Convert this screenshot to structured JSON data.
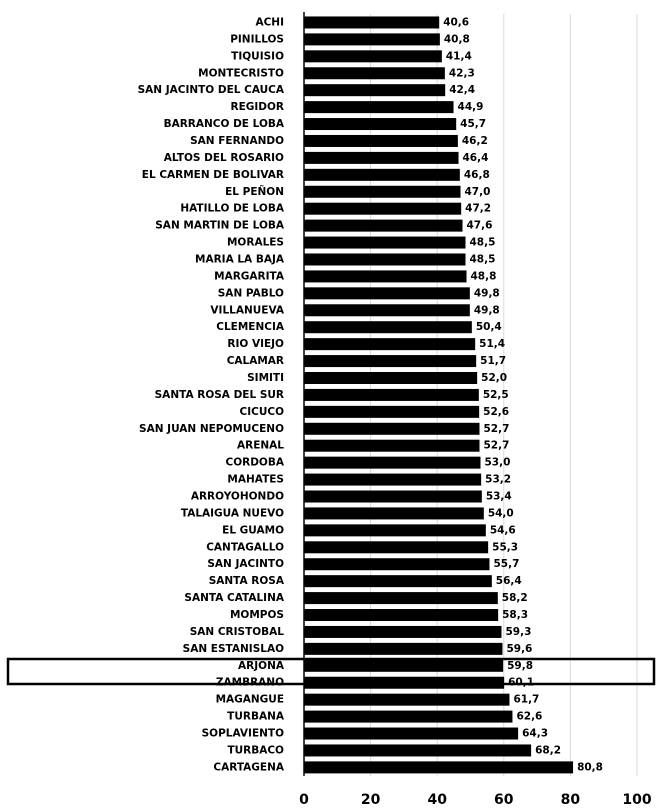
{
  "chart_data": {
    "type": "bar",
    "orientation": "horizontal",
    "categories": [
      "ACHI",
      "PINILLOS",
      "TIQUISIO",
      "MONTECRISTO",
      "SAN JACINTO DEL CAUCA",
      "REGIDOR",
      "BARRANCO DE LOBA",
      "SAN FERNANDO",
      "ALTOS DEL ROSARIO",
      "EL CARMEN DE BOLIVAR",
      "EL PEÑON",
      "HATILLO DE LOBA",
      "SAN MARTIN DE LOBA",
      "MORALES",
      "MARIA LA BAJA",
      "MARGARITA",
      "SAN PABLO",
      "VILLANUEVA",
      "CLEMENCIA",
      "RIO VIEJO",
      "CALAMAR",
      "SIMITI",
      "SANTA ROSA DEL SUR",
      "CICUCO",
      "SAN JUAN NEPOMUCENO",
      "ARENAL",
      "CORDOBA",
      "MAHATES",
      "ARROYOHONDO",
      "TALAIGUA NUEVO",
      "EL GUAMO",
      "CANTAGALLO",
      "SAN JACINTO",
      "SANTA ROSA",
      "SANTA CATALINA",
      "MOMPOS",
      "SAN CRISTOBAL",
      "SAN ESTANISLAO",
      "ARJONA",
      "ZAMBRANO",
      "MAGANGUE",
      "TURBANA",
      "SOPLAVIENTO",
      "TURBACO",
      "CARTAGENA"
    ],
    "values": [
      40.6,
      40.8,
      41.4,
      42.3,
      42.4,
      44.9,
      45.7,
      46.2,
      46.4,
      46.8,
      47.0,
      47.2,
      47.6,
      48.5,
      48.5,
      48.8,
      49.8,
      49.8,
      50.4,
      51.4,
      51.7,
      52.0,
      52.5,
      52.6,
      52.7,
      52.7,
      53.0,
      53.2,
      53.4,
      54.0,
      54.6,
      55.3,
      55.7,
      56.4,
      58.2,
      58.3,
      59.3,
      59.6,
      59.8,
      60.1,
      61.7,
      62.6,
      64.3,
      68.2,
      80.8
    ],
    "value_labels": [
      "40,6",
      "40,8",
      "41,4",
      "42,3",
      "42,4",
      "44,9",
      "45,7",
      "46,2",
      "46,4",
      "46,8",
      "47,0",
      "47,2",
      "47,6",
      "48,5",
      "48,5",
      "48,8",
      "49,8",
      "49,8",
      "50,4",
      "51,4",
      "51,7",
      "52,0",
      "52,5",
      "52,6",
      "52,7",
      "52,7",
      "53,0",
      "53,2",
      "53,4",
      "54,0",
      "54,6",
      "55,3",
      "55,7",
      "56,4",
      "58,2",
      "58,3",
      "59,3",
      "59,6",
      "59,8",
      "60,1",
      "61,7",
      "62,6",
      "64,3",
      "68,2",
      "80,8"
    ],
    "color": "#000000",
    "xlim": [
      0,
      100
    ],
    "xticks": [
      0,
      20,
      40,
      60,
      80,
      100
    ],
    "grid": true
  }
}
